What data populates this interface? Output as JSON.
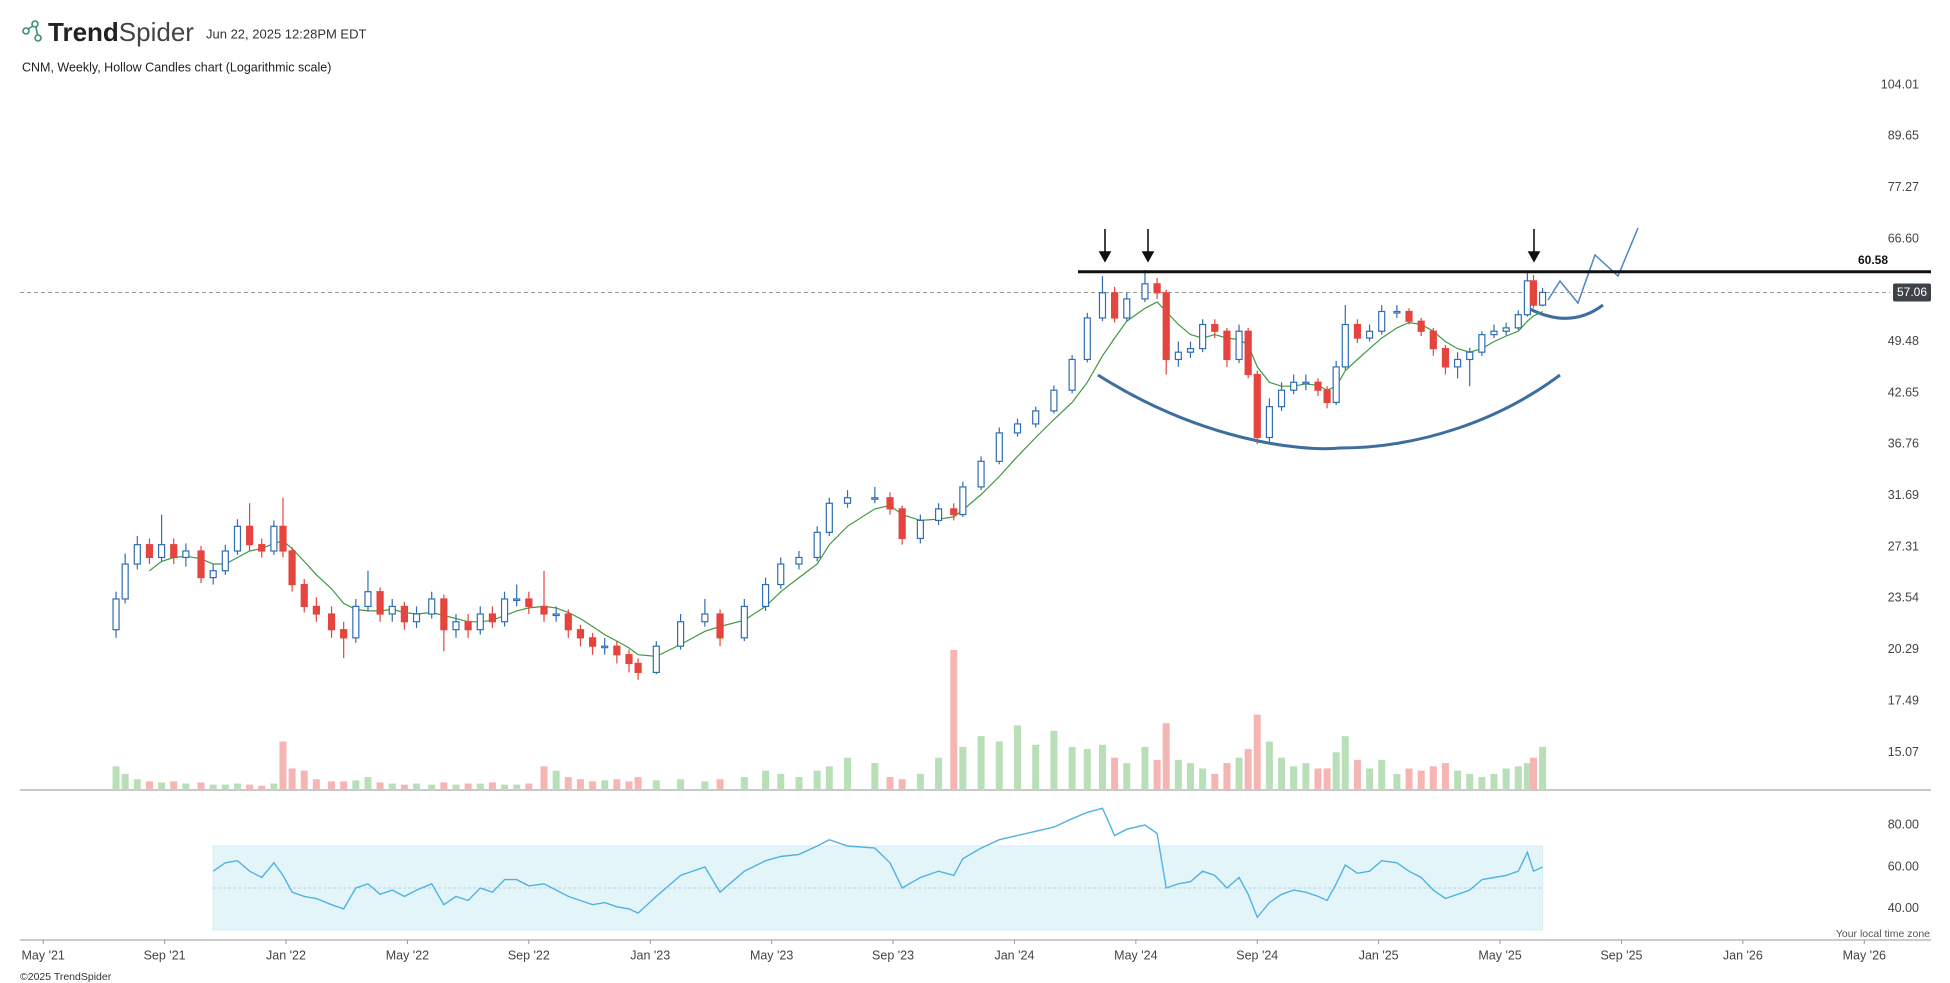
{
  "header": {
    "brand_bold": "Trend",
    "brand_light": "Spider",
    "timestamp": "Jun 22, 2025 12:28PM EDT"
  },
  "footer": {
    "copyright": "©2025 TrendSpider",
    "timezone": "Your local time zone"
  },
  "chart_data": {
    "type": "candlestick",
    "title": "CNM, Weekly, Hollow Candles chart (Logarithmic scale)",
    "log_scale": true,
    "up_color": "#2f6db5",
    "down_color": "#e5443f",
    "volume_up_color": "#b9dfb9",
    "volume_down_color": "#f5b5b3",
    "sma_color": "#3f9a3f",
    "rsi_color": "#4fb3e0",
    "rsi_band_color": "#e4f5fa",
    "resistance": 60.58,
    "x": [
      2.4,
      2.7,
      3.1,
      3.5,
      3.9,
      4.3,
      4.7,
      5.2,
      5.6,
      6.0,
      6.4,
      6.8,
      7.2,
      7.6,
      7.9,
      8.2,
      8.6,
      9.0,
      9.5,
      9.9,
      10.3,
      10.7,
      11.1,
      11.5,
      11.9,
      12.3,
      12.8,
      13.2,
      13.6,
      14.0,
      14.4,
      14.8,
      15.2,
      15.6,
      16.0,
      16.5,
      16.9,
      17.3,
      17.7,
      18.1,
      18.5,
      18.9,
      19.3,
      19.6,
      20.2,
      21.0,
      21.8,
      22.3,
      23.1,
      23.8,
      24.3,
      24.9,
      25.5,
      25.9,
      26.5,
      27.4,
      27.9,
      28.3,
      28.9,
      29.5,
      30.0,
      30.3,
      30.9,
      31.5,
      32.1,
      32.7,
      33.3,
      33.9,
      34.4,
      34.9,
      35.3,
      35.7,
      36.3,
      36.7,
      37.0,
      37.4,
      37.8,
      38.2,
      38.6,
      39.0,
      39.4,
      39.7,
      40.0,
      40.4,
      40.8,
      41.2,
      41.6,
      42.0,
      42.3,
      42.6,
      42.9,
      43.3,
      43.7,
      44.1,
      44.6,
      45.0,
      45.4,
      45.8,
      46.2,
      46.6,
      47.0,
      47.4,
      47.8,
      48.2,
      48.6,
      48.9,
      49.1,
      49.4
    ],
    "open": [
      21.5,
      23.5,
      26,
      27.5,
      26.5,
      27.5,
      26.5,
      27,
      25,
      25.5,
      27,
      29,
      27.5,
      27,
      29,
      27,
      24.5,
      23,
      22.5,
      21.5,
      21,
      23,
      24,
      22.5,
      23,
      22,
      22.5,
      23.5,
      21.5,
      22,
      21.5,
      22.5,
      22,
      23.5,
      23.5,
      23,
      22.5,
      22.5,
      21.5,
      21,
      20.5,
      20.5,
      20,
      19.5,
      19,
      20.5,
      22,
      22.5,
      21,
      23,
      24.5,
      26,
      26.5,
      28.5,
      31,
      31.5,
      31.5,
      30.5,
      28,
      29.5,
      30.5,
      30,
      32.5,
      35,
      38,
      39,
      40.5,
      43,
      47,
      53,
      57,
      53,
      56,
      58.5,
      57,
      47,
      48,
      48.5,
      52,
      51,
      47,
      51,
      45,
      37.5,
      41,
      43,
      44,
      44,
      43,
      41.5,
      46,
      52,
      50,
      51,
      54,
      54,
      52.5,
      51,
      48.5,
      46,
      47,
      48,
      50.5,
      51,
      51.5,
      53.5,
      59,
      55
    ],
    "high": [
      24,
      26.8,
      28.2,
      28,
      30,
      28,
      27.6,
      27.4,
      26,
      27.5,
      29.6,
      31,
      28,
      29.5,
      31.5,
      27.3,
      24.9,
      23.6,
      23,
      22,
      23.5,
      25.5,
      24.3,
      23.5,
      23.3,
      23,
      24,
      23.8,
      22.5,
      22.5,
      23,
      23,
      24,
      24.5,
      24,
      25.5,
      23,
      22.8,
      21.8,
      21.3,
      21,
      20.8,
      20.3,
      19.8,
      20.8,
      22.5,
      23.5,
      22.8,
      23.5,
      25,
      26.5,
      27,
      29,
      31.5,
      32.2,
      32.5,
      32,
      30.8,
      30,
      31,
      31,
      33,
      35.5,
      38.6,
      39.6,
      41,
      43.6,
      47.6,
      53.8,
      59.8,
      58,
      57,
      60.9,
      59.5,
      57.5,
      49.5,
      49.5,
      52.8,
      52.8,
      51.5,
      52,
      51.5,
      45.5,
      42,
      44,
      45,
      45,
      44.5,
      43.5,
      46.8,
      55,
      52.8,
      52,
      55,
      55,
      54.5,
      53,
      51.5,
      49,
      48,
      48.6,
      51,
      52,
      52.3,
      54.2,
      60.8,
      60,
      57.8
    ],
    "low": [
      21,
      23.2,
      25.6,
      26,
      26.2,
      26,
      25.8,
      24.6,
      24.5,
      25.2,
      26.7,
      27,
      26.5,
      26.7,
      26.5,
      24,
      22.6,
      22,
      21,
      19.8,
      20.7,
      22.7,
      22,
      22,
      21.5,
      21.6,
      22.2,
      20.2,
      21,
      21,
      21.2,
      21.6,
      21.7,
      23,
      22.5,
      22,
      22,
      21,
      20.5,
      20,
      20,
      19.5,
      19,
      18.6,
      18.9,
      20.3,
      21.7,
      20.5,
      20.8,
      22.7,
      24.2,
      25.6,
      26.2,
      28.2,
      30.6,
      31,
      30,
      27.5,
      27.6,
      29.1,
      29.5,
      29.8,
      32.2,
      34.7,
      37.6,
      38.6,
      40.2,
      42.6,
      46.6,
      52.5,
      52.3,
      52.5,
      55.5,
      56,
      45,
      46,
      47.2,
      48,
      50,
      46,
      46.5,
      44.5,
      36.8,
      37,
      40.5,
      42.5,
      43,
      42.3,
      40.8,
      41.2,
      45.6,
      49.3,
      49.5,
      50.5,
      53,
      52,
      50.3,
      47.5,
      45,
      44.5,
      43.5,
      47.5,
      50,
      50.4,
      51.2,
      53.2,
      54.5,
      54.8
    ],
    "close": [
      23.5,
      26,
      27.5,
      26.5,
      27.5,
      26.5,
      27,
      25,
      25.5,
      27,
      29,
      27.5,
      27,
      29,
      27,
      24.5,
      23,
      22.5,
      21.5,
      21,
      23,
      24,
      22.5,
      23,
      22,
      22.5,
      23.5,
      21.5,
      22,
      21.5,
      22.5,
      22,
      23.5,
      23.5,
      23,
      22.5,
      22.5,
      21.5,
      21,
      20.5,
      20.5,
      20,
      19.5,
      19,
      20.5,
      22,
      22.5,
      21,
      23,
      24.5,
      26,
      26.5,
      28.5,
      31,
      31.5,
      31.5,
      30.5,
      28,
      29.5,
      30.5,
      30,
      32.5,
      35,
      38,
      39,
      40.5,
      43,
      47,
      53,
      57,
      53,
      56,
      58.5,
      57,
      47,
      48,
      48.5,
      52,
      51,
      47,
      51,
      45,
      37.5,
      41,
      43,
      44,
      44,
      43,
      41.5,
      46,
      52,
      50,
      51,
      54,
      54,
      52.5,
      51,
      48.5,
      46,
      47,
      48,
      50.5,
      51,
      51.5,
      53.5,
      59,
      55,
      57.06
    ],
    "volume": [
      22,
      15,
      10,
      8,
      7,
      8,
      6,
      7,
      5,
      5,
      6,
      5,
      4,
      6,
      45,
      20,
      18,
      10,
      8,
      8,
      9,
      12,
      7,
      6,
      5,
      6,
      5,
      7,
      5,
      6,
      6,
      7,
      5,
      5,
      6,
      22,
      18,
      12,
      10,
      8,
      9,
      10,
      8,
      12,
      9,
      10,
      8,
      10,
      12,
      18,
      15,
      12,
      18,
      22,
      30,
      25,
      12,
      10,
      15,
      30,
      130,
      40,
      50,
      45,
      60,
      42,
      55,
      40,
      38,
      42,
      30,
      25,
      40,
      28,
      62,
      28,
      25,
      20,
      15,
      25,
      30,
      38,
      70,
      45,
      30,
      22,
      25,
      20,
      20,
      35,
      50,
      28,
      20,
      28,
      15,
      20,
      18,
      22,
      25,
      18,
      15,
      12,
      15,
      20,
      22,
      25,
      30,
      40
    ],
    "sma": [
      null,
      null,
      null,
      25.5,
      26.2,
      26.5,
      26.6,
      26.4,
      26.0,
      26.0,
      26.5,
      27.0,
      27.2,
      27.6,
      27.8,
      27.2,
      26.2,
      25.2,
      24.2,
      23.2,
      22.8,
      22.7,
      22.7,
      22.8,
      22.6,
      22.5,
      22.6,
      22.4,
      22.2,
      22.0,
      22.0,
      22.1,
      22.4,
      22.7,
      22.9,
      23.0,
      22.9,
      22.6,
      22.2,
      21.7,
      21.2,
      20.8,
      20.4,
      20.0,
      19.9,
      20.6,
      21.4,
      21.7,
      22.1,
      23.0,
      24.0,
      25.0,
      26.0,
      27.5,
      29.0,
      30.5,
      30.8,
      30.0,
      29.5,
      29.6,
      29.8,
      30.4,
      31.8,
      33.5,
      35.5,
      37.5,
      39.5,
      41.5,
      44.0,
      47.5,
      50.0,
      52.5,
      54.5,
      55.5,
      54.0,
      52.0,
      50.5,
      50.0,
      50.5,
      50.0,
      49.8,
      49.0,
      46.0,
      44.0,
      43.5,
      43.5,
      43.8,
      43.6,
      43.0,
      43.5,
      45.5,
      47.0,
      48.5,
      50.0,
      51.5,
      52.3,
      52.0,
      51.0,
      49.5,
      48.5,
      48.0,
      48.5,
      49.5,
      50.3,
      51.0,
      52.5,
      53.3,
      54.0
    ],
    "rsi": [
      null,
      null,
      null,
      null,
      null,
      null,
      null,
      null,
      58,
      62,
      63,
      58,
      55,
      62,
      56,
      48,
      46,
      45,
      42,
      40,
      50,
      52,
      47,
      49,
      46,
      49,
      52,
      42,
      46,
      44,
      50,
      48,
      54,
      54,
      51,
      52,
      49,
      46,
      44,
      42,
      43,
      41,
      40,
      38,
      46,
      56,
      60,
      48,
      58,
      63,
      65,
      66,
      70,
      73,
      70,
      69,
      62,
      50,
      55,
      58,
      56,
      64,
      69,
      73,
      75,
      77,
      79,
      83,
      86,
      88,
      75,
      78,
      80,
      76,
      50,
      52,
      53,
      58,
      56,
      50,
      55,
      47,
      36,
      43,
      47,
      49,
      48,
      46,
      44,
      52,
      61,
      57,
      58,
      63,
      62,
      58,
      55,
      49,
      45,
      47,
      49,
      54,
      55,
      56,
      58,
      67,
      58,
      60
    ],
    "xlim": [
      -0.6,
      62
    ],
    "xticks": [
      {
        "value": 0,
        "label": "May '21"
      },
      {
        "value": 4,
        "label": "Sep '21"
      },
      {
        "value": 8,
        "label": "Jan '22"
      },
      {
        "value": 12,
        "label": "May '22"
      },
      {
        "value": 16,
        "label": "Sep '22"
      },
      {
        "value": 20,
        "label": "Jan '23"
      },
      {
        "value": 24,
        "label": "May '23"
      },
      {
        "value": 28,
        "label": "Sep '23"
      },
      {
        "value": 32,
        "label": "Jan '24"
      },
      {
        "value": 36,
        "label": "May '24"
      },
      {
        "value": 40,
        "label": "Sep '24"
      },
      {
        "value": 44,
        "label": "Jan '25"
      },
      {
        "value": 48,
        "label": "May '25"
      },
      {
        "value": 52,
        "label": "Sep '25"
      },
      {
        "value": 56,
        "label": "Jan '26"
      },
      {
        "value": 60,
        "label": "May '26"
      }
    ],
    "ylim": [
      13.52,
      107.06
    ],
    "yticks": [
      104.01,
      89.65,
      77.27,
      {
        "value": 66.6,
        "label": "66.60"
      },
      49.48,
      42.65,
      36.76,
      31.69,
      27.31,
      23.54,
      20.29,
      17.49,
      15.07
    ],
    "rsi_ylim": [
      25.2,
      94.3
    ],
    "rsi_yticks": [
      {
        "value": 80,
        "label": "80.00"
      },
      {
        "value": 60,
        "label": "60.00"
      },
      {
        "value": 40,
        "label": "40.00"
      }
    ],
    "rsi_band": [
      30,
      70
    ],
    "rsi_mid": 50
  }
}
